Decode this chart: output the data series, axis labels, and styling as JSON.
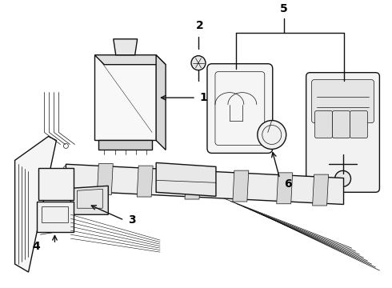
{
  "background_color": "#ffffff",
  "line_color": "#111111",
  "label_color": "#000000",
  "figsize": [
    4.9,
    3.6
  ],
  "dpi": 100,
  "xlim": [
    0,
    490
  ],
  "ylim": [
    0,
    360
  ]
}
